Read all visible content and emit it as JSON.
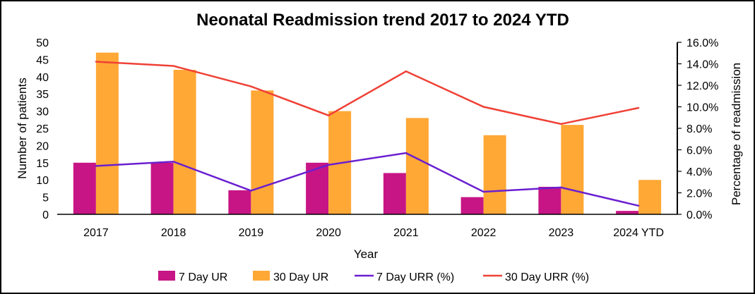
{
  "chart_data": {
    "type": "bar",
    "title": "Neonatal Readmission trend 2017 to 2024 YTD",
    "xlabel": "Year",
    "ylabel": "Number of patients",
    "y2label": "Percentage of readmission",
    "categories": [
      "2017",
      "2018",
      "2019",
      "2020",
      "2021",
      "2022",
      "2023",
      "2024 YTD"
    ],
    "ylim": [
      0,
      50
    ],
    "yticks": [
      "0",
      "5",
      "10",
      "15",
      "20",
      "25",
      "30",
      "35",
      "40",
      "45",
      "50"
    ],
    "y2lim": [
      0,
      16
    ],
    "y2ticks": [
      "0.0%",
      "2.0%",
      "4.0%",
      "6.0%",
      "8.0%",
      "10.0%",
      "12.0%",
      "14.0%",
      "16.0%"
    ],
    "series": [
      {
        "name": "7 Day UR",
        "kind": "bar",
        "axis": "left",
        "color": "#C71585",
        "values": [
          15,
          15,
          7,
          15,
          12,
          5,
          8,
          1
        ]
      },
      {
        "name": "30 Day UR",
        "kind": "bar",
        "axis": "left",
        "color": "#FFA836",
        "values": [
          47,
          42,
          36,
          30,
          28,
          23,
          26,
          10
        ]
      },
      {
        "name": "7 Day URR (%)",
        "kind": "line",
        "axis": "right",
        "color": "#6A1FD0",
        "values": [
          4.5,
          4.9,
          2.2,
          4.6,
          5.7,
          2.1,
          2.5,
          0.8
        ]
      },
      {
        "name": "30 Day URR (%)",
        "kind": "line",
        "axis": "right",
        "color": "#EF4136",
        "values": [
          14.2,
          13.8,
          11.9,
          9.2,
          13.3,
          10.0,
          8.4,
          9.9
        ]
      }
    ],
    "grid": false,
    "legend_position": "bottom"
  }
}
